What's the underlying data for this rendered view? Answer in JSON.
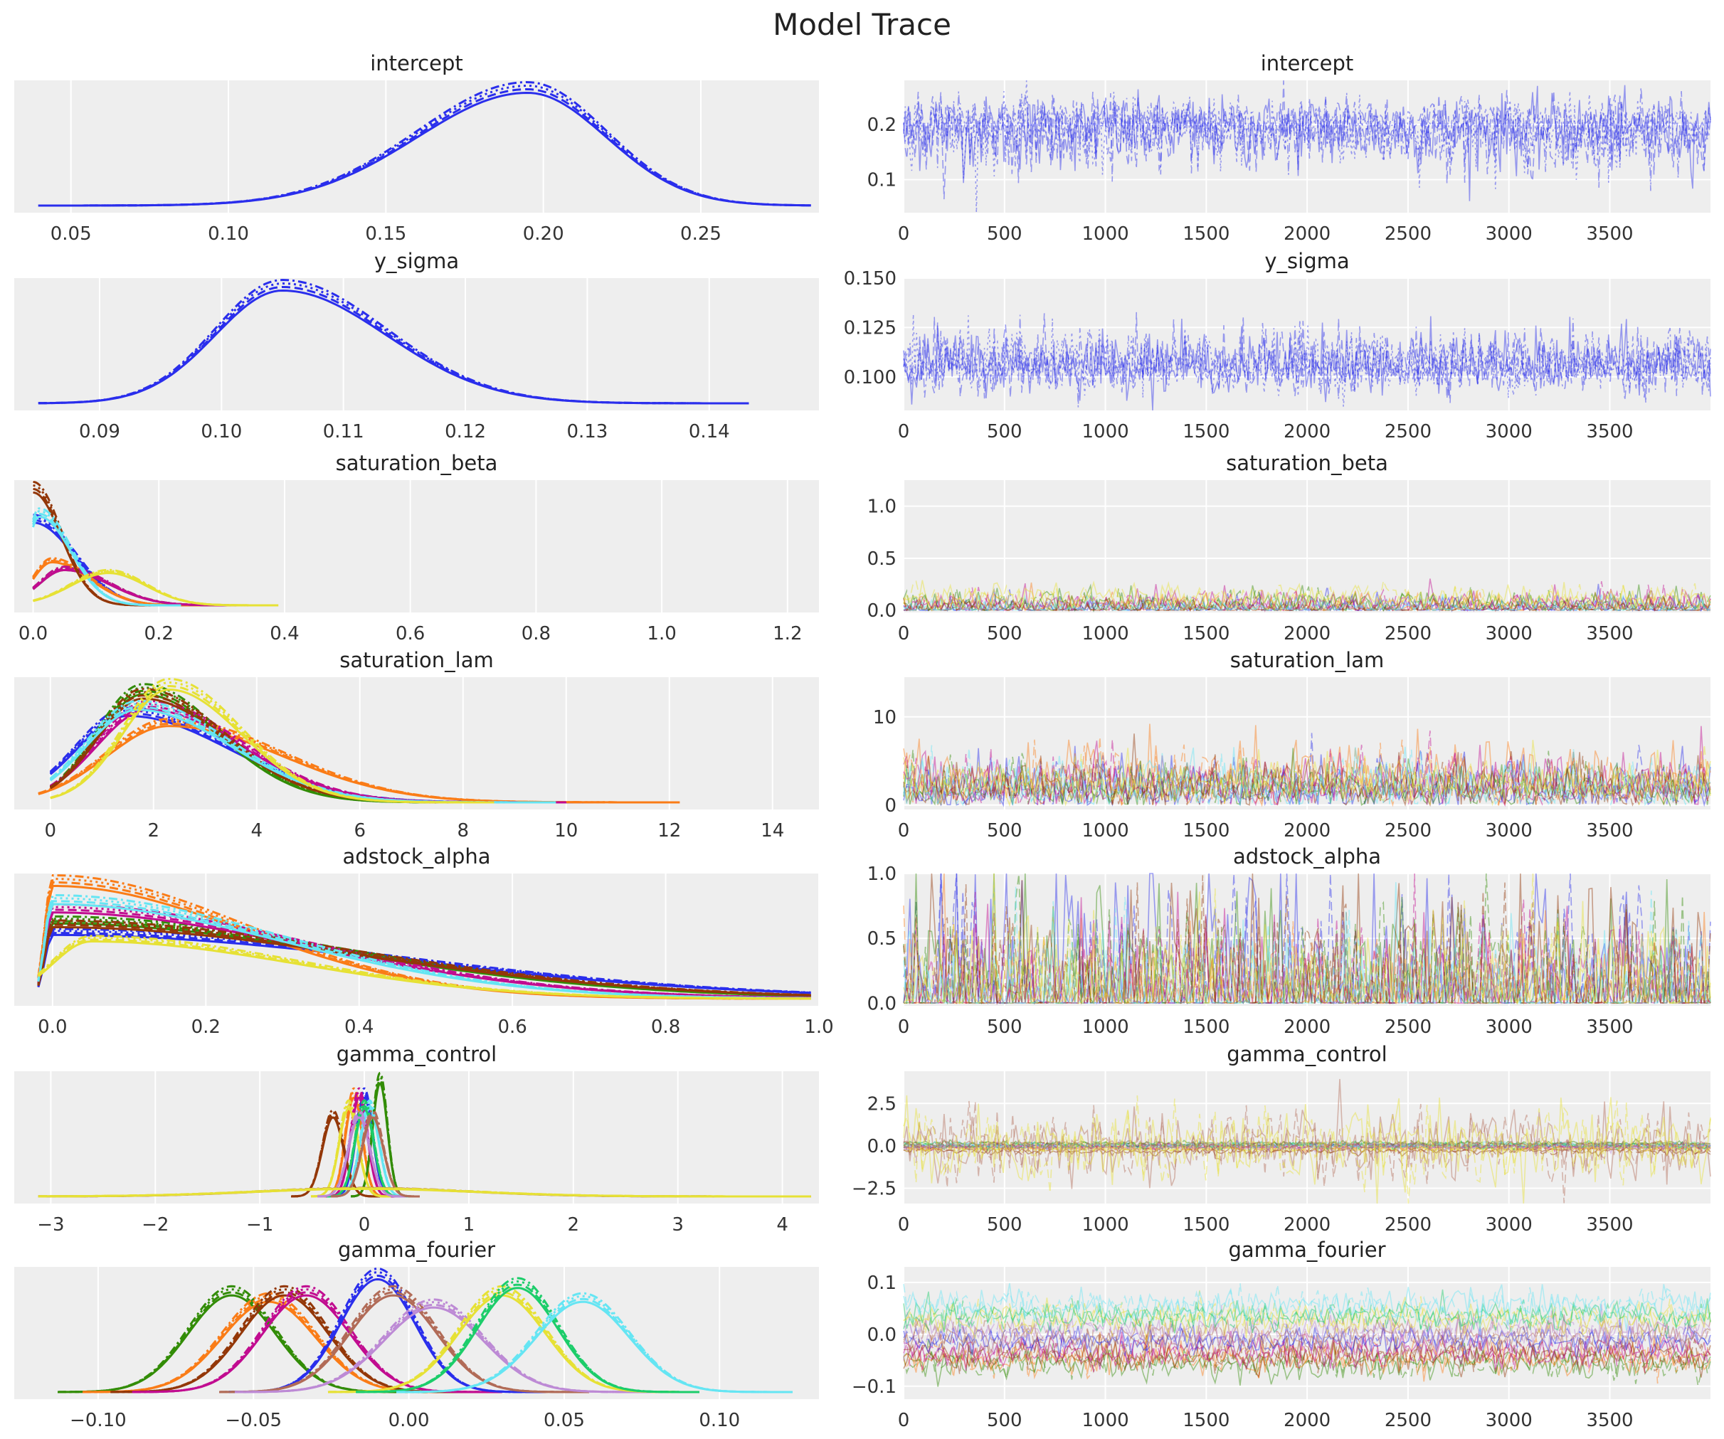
{
  "title": "Model Trace",
  "colors": [
    "#2a2eec",
    "#fa7c17",
    "#328c06",
    "#c10c90",
    "#933708",
    "#65e5f3",
    "#e6e135",
    "#1ccd6a",
    "#bd8ad5",
    "#b16b57"
  ],
  "chart_data": [
    {
      "variable": "intercept",
      "type": "line",
      "kde": {
        "xlim": [
          0.032,
          0.2875
        ],
        "xticks": [
          "0.05",
          "0.10",
          "0.15",
          "0.20",
          "0.25"
        ],
        "xtick_values": [
          0.05,
          0.1,
          0.15,
          0.2,
          0.25
        ],
        "components": [
          {
            "color": 0,
            "mode": 0.195,
            "sd_left": 0.035,
            "sd_right": 0.025
          }
        ]
      },
      "trace": {
        "xlim": [
          0,
          3999
        ],
        "xticks": [
          0,
          500,
          1000,
          1500,
          2000,
          2500,
          3000,
          3500
        ],
        "ylim": [
          0.04,
          0.28
        ],
        "yticks": [
          "0.1",
          "0.2"
        ],
        "ytick_values": [
          0.1,
          0.2
        ]
      }
    },
    {
      "variable": "y_sigma",
      "type": "line",
      "kde": {
        "xlim": [
          0.083,
          0.149
        ],
        "xticks": [
          "0.09",
          "0.10",
          "0.11",
          "0.12",
          "0.13",
          "0.14"
        ],
        "xtick_values": [
          0.09,
          0.1,
          0.11,
          0.12,
          0.13,
          0.14
        ],
        "components": [
          {
            "color": 0,
            "mode": 0.105,
            "sd_left": 0.0055,
            "sd_right": 0.0085
          }
        ]
      },
      "trace": {
        "xlim": [
          0,
          3999
        ],
        "xticks": [
          0,
          500,
          1000,
          1500,
          2000,
          2500,
          3000,
          3500
        ],
        "ylim": [
          0.083,
          0.15
        ],
        "yticks": [
          "0.100",
          "0.125",
          "0.150"
        ],
        "ytick_values": [
          0.1,
          0.125,
          0.15
        ]
      }
    },
    {
      "variable": "saturation_beta",
      "type": "line",
      "kde": {
        "xlim": [
          -0.03,
          1.25
        ],
        "xticks": [
          "0.0",
          "0.2",
          "0.4",
          "0.6",
          "0.8",
          "1.0",
          "1.2"
        ],
        "xtick_values": [
          0,
          0.2,
          0.4,
          0.6,
          0.8,
          1.0,
          1.2
        ],
        "lower_bound": 0,
        "components": [
          {
            "color": 0,
            "mode": 0.0,
            "sd_left": 0.01,
            "sd_right": 0.065
          },
          {
            "color": 1,
            "mode": 0.03,
            "sd_left": 0.03,
            "sd_right": 0.06
          },
          {
            "color": 2,
            "mode": 0.05,
            "sd_left": 0.04,
            "sd_right": 0.07
          },
          {
            "color": 3,
            "mode": 0.05,
            "sd_left": 0.04,
            "sd_right": 0.07
          },
          {
            "color": 4,
            "mode": 0.0,
            "sd_left": 0.01,
            "sd_right": 0.045
          },
          {
            "color": 5,
            "mode": 0.01,
            "sd_left": 0.02,
            "sd_right": 0.05
          },
          {
            "color": 6,
            "mode": 0.12,
            "sd_left": 0.06,
            "sd_right": 0.06
          }
        ]
      },
      "trace": {
        "xlim": [
          0,
          3999
        ],
        "xticks": [
          0,
          500,
          1000,
          1500,
          2000,
          2500,
          3000,
          3500
        ],
        "ylim": [
          -0.02,
          1.25
        ],
        "yticks": [
          "0.0",
          "0.5",
          "1.0"
        ],
        "ytick_values": [
          0,
          0.5,
          1.0
        ]
      }
    },
    {
      "variable": "saturation_lam",
      "type": "line",
      "kde": {
        "xlim": [
          -0.7,
          14.9
        ],
        "xticks": [
          "0",
          "2",
          "4",
          "6",
          "8",
          "10",
          "12",
          "14"
        ],
        "xtick_values": [
          0,
          2,
          4,
          6,
          8,
          10,
          12,
          14
        ],
        "lower_bound": 0,
        "components": [
          {
            "color": 0,
            "mode": 1.5,
            "sd_left": 1.0,
            "sd_right": 2.0
          },
          {
            "color": 1,
            "mode": 2.3,
            "sd_left": 1.2,
            "sd_right": 2.2
          },
          {
            "color": 2,
            "mode": 1.8,
            "sd_left": 0.9,
            "sd_right": 1.5
          },
          {
            "color": 3,
            "mode": 1.9,
            "sd_left": 1.0,
            "sd_right": 1.8
          },
          {
            "color": 4,
            "mode": 1.8,
            "sd_left": 0.9,
            "sd_right": 1.6
          },
          {
            "color": 5,
            "mode": 1.7,
            "sd_left": 1.0,
            "sd_right": 1.8
          },
          {
            "color": 6,
            "mode": 2.3,
            "sd_left": 0.9,
            "sd_right": 1.4
          }
        ]
      },
      "trace": {
        "xlim": [
          0,
          3999
        ],
        "xticks": [
          0,
          500,
          1000,
          1500,
          2000,
          2500,
          3000,
          3500
        ],
        "ylim": [
          -0.5,
          14.5
        ],
        "yticks": [
          "0",
          "10"
        ],
        "ytick_values": [
          0,
          10
        ]
      }
    },
    {
      "variable": "adstock_alpha",
      "type": "line",
      "kde": {
        "xlim": [
          -0.05,
          1.0
        ],
        "xticks": [
          "0.0",
          "0.2",
          "0.4",
          "0.6",
          "0.8",
          "1.0"
        ],
        "xtick_values": [
          0,
          0.2,
          0.4,
          0.6,
          0.8,
          1.0
        ],
        "lower_bound": 0,
        "components": [
          {
            "color": 0,
            "mode": 0.0,
            "sd_left": 0.01,
            "sd_right": 0.45
          },
          {
            "color": 1,
            "mode": 0.0,
            "sd_left": 0.01,
            "sd_right": 0.25
          },
          {
            "color": 2,
            "mode": 0.0,
            "sd_left": 0.01,
            "sd_right": 0.38
          },
          {
            "color": 3,
            "mode": 0.0,
            "sd_left": 0.01,
            "sd_right": 0.33
          },
          {
            "color": 4,
            "mode": 0.0,
            "sd_left": 0.01,
            "sd_right": 0.4
          },
          {
            "color": 5,
            "mode": 0.0,
            "sd_left": 0.01,
            "sd_right": 0.3
          },
          {
            "color": 6,
            "mode": 0.05,
            "sd_left": 0.05,
            "sd_right": 0.27
          }
        ]
      },
      "trace": {
        "xlim": [
          0,
          3999
        ],
        "xticks": [
          0,
          500,
          1000,
          1500,
          2000,
          2500,
          3000,
          3500
        ],
        "ylim": [
          -0.02,
          1.0
        ],
        "yticks": [
          "0.0",
          "0.5",
          "1.0"
        ],
        "ytick_values": [
          0,
          0.5,
          1.0
        ]
      }
    },
    {
      "variable": "gamma_control",
      "type": "line",
      "kde": {
        "xlim": [
          -3.35,
          4.35
        ],
        "xticks": [
          "−3",
          "−2",
          "−1",
          "0",
          "1",
          "2",
          "3",
          "4"
        ],
        "xtick_values": [
          -3,
          -2,
          -1,
          0,
          1,
          2,
          3,
          4
        ],
        "components": [
          {
            "color": 0,
            "mode": 0.0,
            "sd_left": 0.08,
            "sd_right": 0.08
          },
          {
            "color": 1,
            "mode": -0.1,
            "sd_left": 0.08,
            "sd_right": 0.08
          },
          {
            "color": 2,
            "mode": 0.15,
            "sd_left": 0.07,
            "sd_right": 0.07
          },
          {
            "color": 3,
            "mode": -0.05,
            "sd_left": 0.08,
            "sd_right": 0.08
          },
          {
            "color": 4,
            "mode": -0.3,
            "sd_left": 0.1,
            "sd_right": 0.1
          },
          {
            "color": 5,
            "mode": 0.05,
            "sd_left": 0.09,
            "sd_right": 0.09
          },
          {
            "color": 6,
            "mode": -0.15,
            "sd_left": 0.09,
            "sd_right": 0.09
          },
          {
            "color": 7,
            "mode": 0.0,
            "sd_left": 0.09,
            "sd_right": 0.09
          },
          {
            "color": 8,
            "mode": -0.05,
            "sd_left": 0.1,
            "sd_right": 0.1
          },
          {
            "color": 9,
            "mode": 0.08,
            "sd_left": 0.1,
            "sd_right": 0.1
          },
          {
            "color": 9,
            "mode": 0.0,
            "sd_left": 1.0,
            "sd_right": 1.0
          },
          {
            "color": 6,
            "mode": 0.0,
            "sd_left": 1.05,
            "sd_right": 1.05
          }
        ]
      },
      "trace": {
        "xlim": [
          0,
          3999
        ],
        "xticks": [
          0,
          500,
          1000,
          1500,
          2000,
          2500,
          3000,
          3500
        ],
        "ylim": [
          -3.4,
          4.4
        ],
        "yticks": [
          "−2.5",
          "0.0",
          "2.5"
        ],
        "ytick_values": [
          -2.5,
          0,
          2.5
        ]
      }
    },
    {
      "variable": "gamma_fourier",
      "type": "line",
      "kde": {
        "xlim": [
          -0.127,
          0.132
        ],
        "xticks": [
          "−0.10",
          "−0.05",
          "0.00",
          "0.05",
          "0.10"
        ],
        "xtick_values": [
          -0.1,
          -0.05,
          0,
          0.05,
          0.1
        ],
        "components": [
          {
            "color": 2,
            "mode": -0.057,
            "sd_left": 0.014,
            "sd_right": 0.014
          },
          {
            "color": 1,
            "mode": -0.045,
            "sd_left": 0.015,
            "sd_right": 0.015
          },
          {
            "color": 4,
            "mode": -0.04,
            "sd_left": 0.014,
            "sd_right": 0.014
          },
          {
            "color": 3,
            "mode": -0.033,
            "sd_left": 0.014,
            "sd_right": 0.014
          },
          {
            "color": 0,
            "mode": -0.01,
            "sd_left": 0.012,
            "sd_right": 0.012
          },
          {
            "color": 9,
            "mode": -0.005,
            "sd_left": 0.014,
            "sd_right": 0.014
          },
          {
            "color": 8,
            "mode": 0.008,
            "sd_left": 0.016,
            "sd_right": 0.016
          },
          {
            "color": 6,
            "mode": 0.03,
            "sd_left": 0.014,
            "sd_right": 0.014
          },
          {
            "color": 7,
            "mode": 0.035,
            "sd_left": 0.013,
            "sd_right": 0.013
          },
          {
            "color": 5,
            "mode": 0.056,
            "sd_left": 0.015,
            "sd_right": 0.015
          }
        ]
      },
      "trace": {
        "xlim": [
          0,
          3999
        ],
        "xticks": [
          0,
          500,
          1000,
          1500,
          2000,
          2500,
          3000,
          3500
        ],
        "ylim": [
          -0.125,
          0.13
        ],
        "yticks": [
          "−0.1",
          "0.0",
          "0.1"
        ],
        "ytick_values": [
          -0.1,
          0,
          0.1
        ]
      }
    }
  ]
}
